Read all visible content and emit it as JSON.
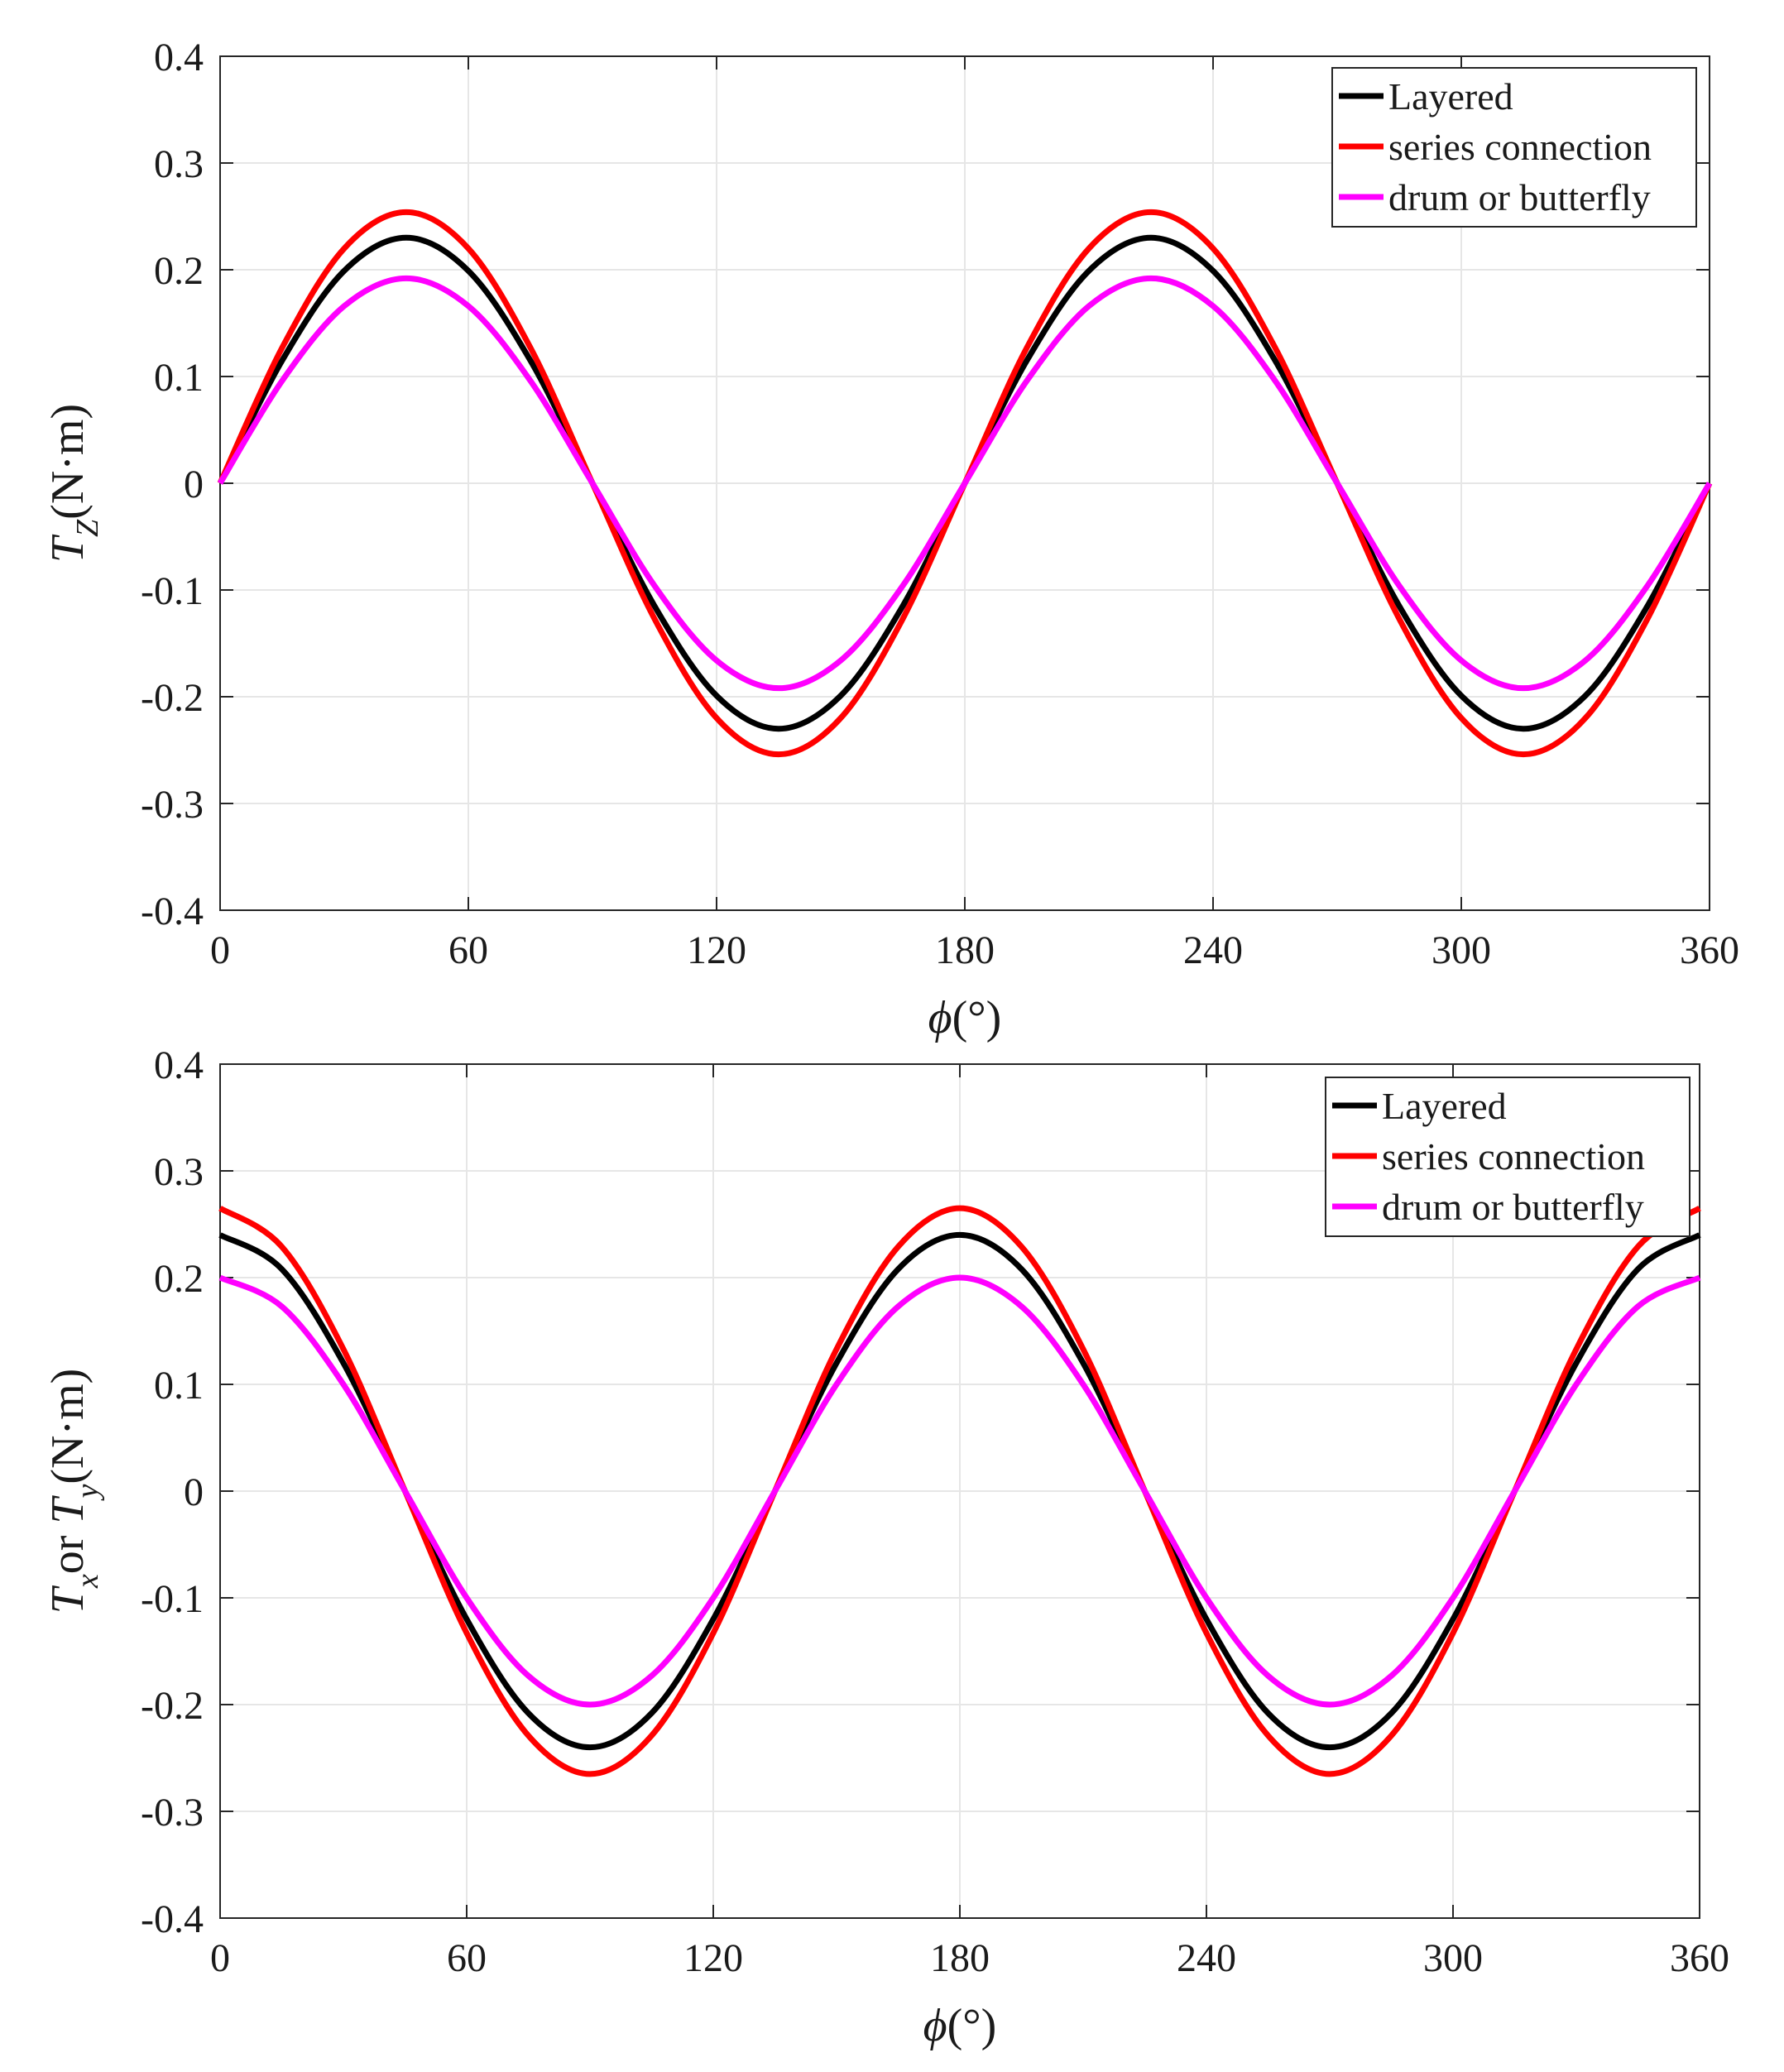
{
  "chart_data": [
    {
      "type": "line",
      "xlabel": "ϕ(°)",
      "xlabel_symbol": "ϕ",
      "xlabel_unit": "(°)",
      "ylabel": "T_Z(N·m)",
      "ylabel_main": "T",
      "ylabel_sub": "Z",
      "ylabel_unit": "(N·m)",
      "xlim": [
        0,
        360
      ],
      "ylim": [
        -0.4,
        0.4
      ],
      "xticks": [
        0,
        60,
        120,
        180,
        240,
        300,
        360
      ],
      "xtick_labels": [
        "0",
        "60",
        "120",
        "180",
        "240",
        "300",
        "360"
      ],
      "yticks": [
        0.4,
        0.3,
        0.2,
        0.1,
        0,
        -0.1,
        -0.2,
        -0.3,
        -0.4
      ],
      "ytick_labels": [
        "0.4",
        "0.3",
        "0.2",
        "0.1",
        "0",
        "-0.1",
        "-0.2",
        "-0.3",
        "-0.4"
      ],
      "grid": true,
      "legend_position": "top-right",
      "x": [
        0,
        15,
        30,
        45,
        60,
        75,
        90,
        105,
        120,
        135,
        150,
        165,
        180,
        195,
        210,
        225,
        240,
        255,
        270,
        285,
        300,
        315,
        330,
        345,
        360
      ],
      "series": [
        {
          "name": "Layered",
          "color": "#000000",
          "values": [
            0,
            0.115,
            0.199,
            0.23,
            0.199,
            0.115,
            0,
            -0.115,
            -0.199,
            -0.23,
            -0.199,
            -0.115,
            0,
            0.115,
            0.199,
            0.23,
            0.199,
            0.115,
            0,
            -0.115,
            -0.199,
            -0.23,
            -0.199,
            -0.115,
            0
          ]
        },
        {
          "name": "series connection",
          "color": "#ff0000",
          "values": [
            0,
            0.127,
            0.22,
            0.254,
            0.22,
            0.127,
            0,
            -0.127,
            -0.22,
            -0.254,
            -0.22,
            -0.127,
            0,
            0.127,
            0.22,
            0.254,
            0.22,
            0.127,
            0,
            -0.127,
            -0.22,
            -0.254,
            -0.22,
            -0.127,
            0
          ]
        },
        {
          "name": "drum or butterfly",
          "color": "#ff00ff",
          "values": [
            0,
            0.096,
            0.166,
            0.192,
            0.166,
            0.096,
            0,
            -0.096,
            -0.166,
            -0.192,
            -0.166,
            -0.096,
            0,
            0.096,
            0.166,
            0.192,
            0.166,
            0.096,
            0,
            -0.096,
            -0.166,
            -0.192,
            -0.166,
            -0.096,
            0
          ]
        }
      ]
    },
    {
      "type": "line",
      "xlabel": "ϕ(°)",
      "xlabel_symbol": "ϕ",
      "xlabel_unit": "(°)",
      "ylabel": "T_x or T_y(N·m)",
      "ylabel_main": "T",
      "ylabel_sub": "x",
      "ylabel_mid": "or ",
      "ylabel_main2": "T",
      "ylabel_sub2": "y",
      "ylabel_unit": "(N·m)",
      "xlim": [
        0,
        360
      ],
      "ylim": [
        -0.4,
        0.4
      ],
      "xticks": [
        0,
        60,
        120,
        180,
        240,
        300,
        360
      ],
      "xtick_labels": [
        "0",
        "60",
        "120",
        "180",
        "240",
        "300",
        "360"
      ],
      "yticks": [
        0.4,
        0.3,
        0.2,
        0.1,
        0,
        -0.1,
        -0.2,
        -0.3,
        -0.4
      ],
      "ytick_labels": [
        "0.4",
        "0.3",
        "0.2",
        "0.1",
        "0",
        "-0.1",
        "-0.2",
        "-0.3",
        "-0.4"
      ],
      "grid": true,
      "legend_position": "top-right",
      "x": [
        0,
        15,
        30,
        45,
        60,
        75,
        90,
        105,
        120,
        135,
        150,
        165,
        180,
        195,
        210,
        225,
        240,
        255,
        270,
        285,
        300,
        315,
        330,
        345,
        360
      ],
      "series": [
        {
          "name": "Layered",
          "color": "#000000",
          "values": [
            0.24,
            0.208,
            0.12,
            0,
            -0.12,
            -0.208,
            -0.24,
            -0.208,
            -0.12,
            0,
            0.12,
            0.208,
            0.24,
            0.208,
            0.12,
            0,
            -0.12,
            -0.208,
            -0.24,
            -0.208,
            -0.12,
            0,
            0.12,
            0.208,
            0.24
          ]
        },
        {
          "name": "series connection",
          "color": "#ff0000",
          "values": [
            0.265,
            0.229,
            0.133,
            0,
            -0.133,
            -0.229,
            -0.265,
            -0.229,
            -0.133,
            0,
            0.133,
            0.229,
            0.265,
            0.229,
            0.133,
            0,
            -0.133,
            -0.229,
            -0.265,
            -0.229,
            -0.133,
            0,
            0.133,
            0.229,
            0.265
          ]
        },
        {
          "name": "drum or butterfly",
          "color": "#ff00ff",
          "values": [
            0.2,
            0.173,
            0.1,
            0,
            -0.1,
            -0.173,
            -0.2,
            -0.173,
            -0.1,
            0,
            0.1,
            0.173,
            0.2,
            0.173,
            0.1,
            0,
            -0.1,
            -0.173,
            -0.2,
            -0.173,
            -0.1,
            0,
            0.1,
            0.173,
            0.2
          ]
        }
      ]
    }
  ]
}
